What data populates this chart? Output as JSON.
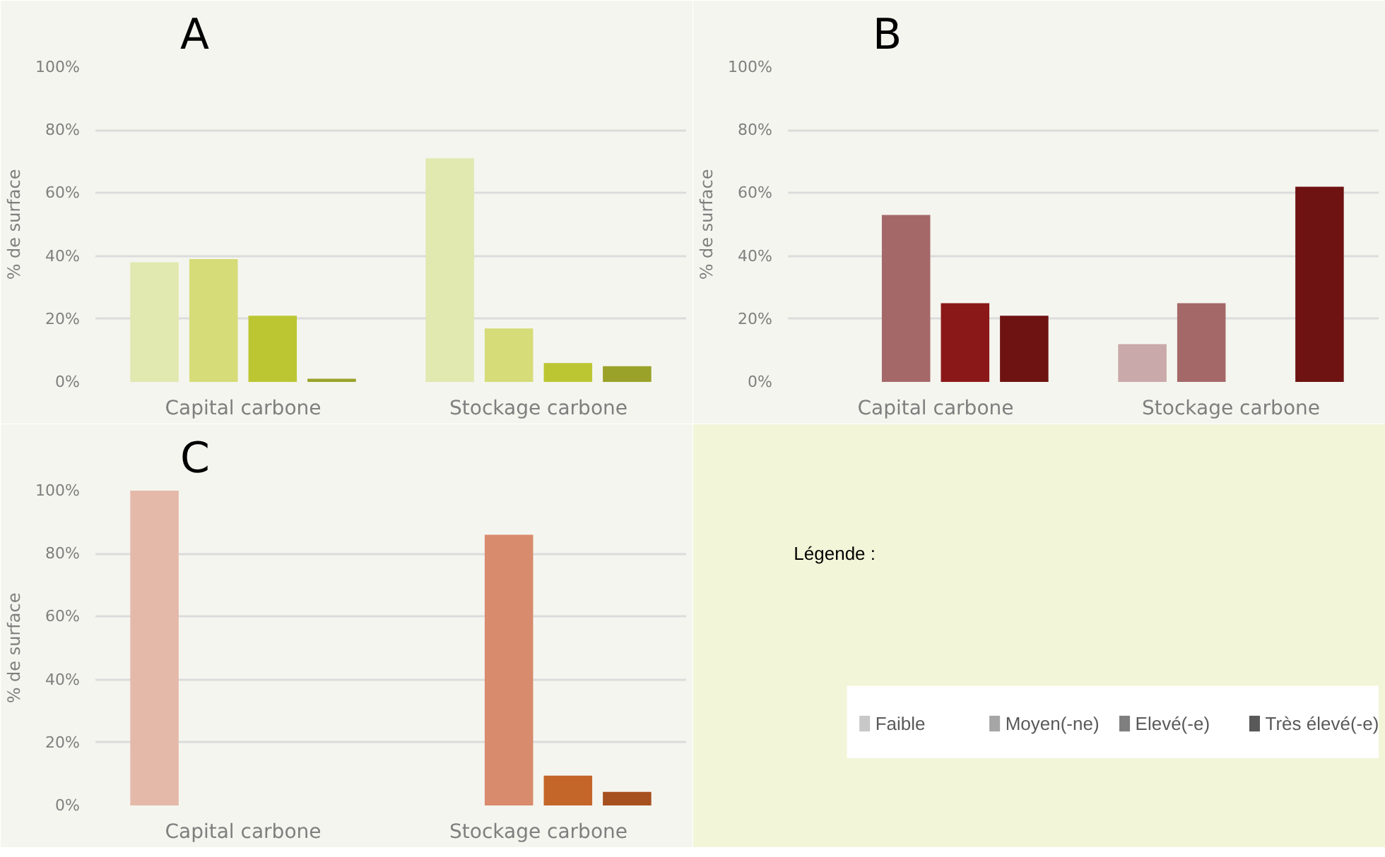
{
  "chart_data": [
    {
      "type": "bar",
      "title": "A",
      "categories": [
        "Capital carbone",
        "Stockage carbone"
      ],
      "ylabel": "% de surface",
      "ylim": [
        0,
        100
      ],
      "yticks": [
        {
          "value": 0,
          "label": "0%"
        },
        {
          "value": 20,
          "label": "20%"
        },
        {
          "value": 40,
          "label": "40%"
        },
        {
          "value": 60,
          "label": "60%"
        },
        {
          "value": 80,
          "label": "80%"
        },
        {
          "value": 100,
          "label": "100%"
        }
      ],
      "grid": "y",
      "series": [
        {
          "color": "#e1e8b0",
          "values": [
            38,
            71
          ]
        },
        {
          "color": "#d5dc78",
          "values": [
            39,
            17
          ]
        },
        {
          "color": "#bcc632",
          "values": [
            21,
            6
          ]
        },
        {
          "color": "#9aa22a",
          "values": [
            1,
            5
          ]
        }
      ]
    },
    {
      "type": "bar",
      "title": "B",
      "categories": [
        "Capital carbone",
        "Stockage carbone"
      ],
      "ylabel": "% de surface",
      "ylim": [
        0,
        100
      ],
      "yticks": [
        {
          "value": 0,
          "label": "0%"
        },
        {
          "value": 20,
          "label": "20%"
        },
        {
          "value": 40,
          "label": "40%"
        },
        {
          "value": 60,
          "label": "60%"
        },
        {
          "value": 80,
          "label": "80%"
        },
        {
          "value": 100,
          "label": "100%"
        }
      ],
      "grid": "y",
      "series": [
        {
          "color": "#c9a9a9",
          "values": [
            0,
            12
          ]
        },
        {
          "color": "#a56868",
          "values": [
            53,
            25
          ]
        },
        {
          "color": "#8b1818",
          "values": [
            25,
            0
          ]
        },
        {
          "color": "#6e1212",
          "values": [
            21,
            62
          ]
        }
      ]
    },
    {
      "type": "bar",
      "title": "C",
      "categories": [
        "Capital carbone",
        "Stockage carbone"
      ],
      "ylabel": "% de surface",
      "ylim": [
        0,
        100
      ],
      "yticks": [
        {
          "value": 0,
          "label": "0%"
        },
        {
          "value": 20,
          "label": "20%"
        },
        {
          "value": 40,
          "label": "40%"
        },
        {
          "value": 60,
          "label": "60%"
        },
        {
          "value": 80,
          "label": "80%"
        },
        {
          "value": 100,
          "label": "100%"
        }
      ],
      "grid": "y",
      "series": [
        {
          "color": "#e5b9aa",
          "values": [
            100,
            0
          ]
        },
        {
          "color": "#d98b6d",
          "values": [
            0,
            86
          ]
        },
        {
          "color": "#c4662a",
          "values": [
            0,
            9.5
          ]
        },
        {
          "color": "#a65020",
          "values": [
            0,
            4.3
          ]
        }
      ]
    },
    {
      "type": "other",
      "title": "Légende :",
      "categories": [
        "Faible",
        "Moyen(-ne)",
        "Elevé(-e)",
        "Très élevé(-e)"
      ],
      "colors": [
        "#c8c8c8",
        "#a6a6a6",
        "#7f7f7f",
        "#595959"
      ]
    }
  ]
}
